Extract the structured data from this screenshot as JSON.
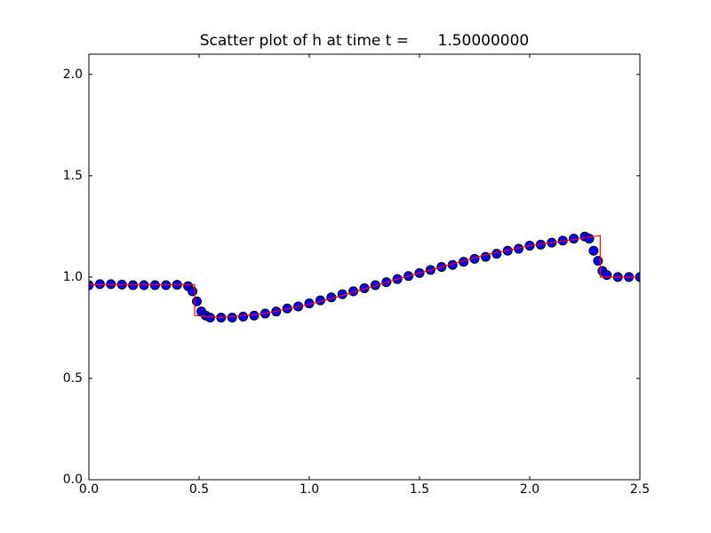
{
  "chart_data": {
    "type": "scatter",
    "title": "Scatter plot of h at time t =      1.50000000",
    "xlim": [
      0,
      2.5
    ],
    "ylim": [
      0,
      2.1
    ],
    "xticks": [
      {
        "value": 0,
        "label": "0.0"
      },
      0.5,
      {
        "value": 1,
        "label": "1.0"
      },
      1.5,
      {
        "value": 2,
        "label": "2.0"
      },
      2.5
    ],
    "yticks": [
      {
        "value": 0,
        "label": "0.0"
      },
      0.5,
      {
        "value": 1,
        "label": "1.0"
      },
      1.5,
      {
        "value": 2,
        "label": "2.0"
      }
    ],
    "grid": false,
    "series": [
      {
        "kind": "scatter",
        "color": "#0000ff",
        "edgecolor": "#000000",
        "x": [
          0.0,
          0.05,
          0.1,
          0.15,
          0.2,
          0.25,
          0.3,
          0.35,
          0.4,
          0.45,
          0.47,
          0.49,
          0.51,
          0.53,
          0.55,
          0.6,
          0.65,
          0.7,
          0.75,
          0.8,
          0.85,
          0.9,
          0.95,
          1.0,
          1.05,
          1.1,
          1.15,
          1.2,
          1.25,
          1.3,
          1.35,
          1.4,
          1.45,
          1.5,
          1.55,
          1.6,
          1.65,
          1.7,
          1.75,
          1.8,
          1.85,
          1.9,
          1.95,
          2.0,
          2.05,
          2.1,
          2.15,
          2.2,
          2.25,
          2.27,
          2.29,
          2.31,
          2.33,
          2.35,
          2.4,
          2.45,
          2.5
        ],
        "values": [
          0.96,
          0.965,
          0.965,
          0.963,
          0.96,
          0.96,
          0.96,
          0.96,
          0.962,
          0.955,
          0.93,
          0.88,
          0.83,
          0.81,
          0.8,
          0.8,
          0.8,
          0.805,
          0.81,
          0.82,
          0.83,
          0.845,
          0.855,
          0.87,
          0.885,
          0.9,
          0.915,
          0.93,
          0.945,
          0.96,
          0.975,
          0.99,
          1.005,
          1.02,
          1.035,
          1.05,
          1.06,
          1.075,
          1.09,
          1.1,
          1.115,
          1.13,
          1.14,
          1.155,
          1.16,
          1.17,
          1.18,
          1.19,
          1.2,
          1.19,
          1.13,
          1.08,
          1.03,
          1.01,
          1.0,
          1.0,
          1.0
        ]
      },
      {
        "kind": "line",
        "color": "#ff0000",
        "x": [
          0,
          0.48,
          0.48,
          0.6,
          0.8,
          1.0,
          1.2,
          1.4,
          1.6,
          1.8,
          2.0,
          2.2,
          2.32,
          2.32,
          2.5
        ],
        "values": [
          0.963,
          0.963,
          0.81,
          0.8,
          0.82,
          0.865,
          0.925,
          0.99,
          1.05,
          1.11,
          1.155,
          1.185,
          1.205,
          1.0,
          1.0
        ]
      }
    ]
  }
}
